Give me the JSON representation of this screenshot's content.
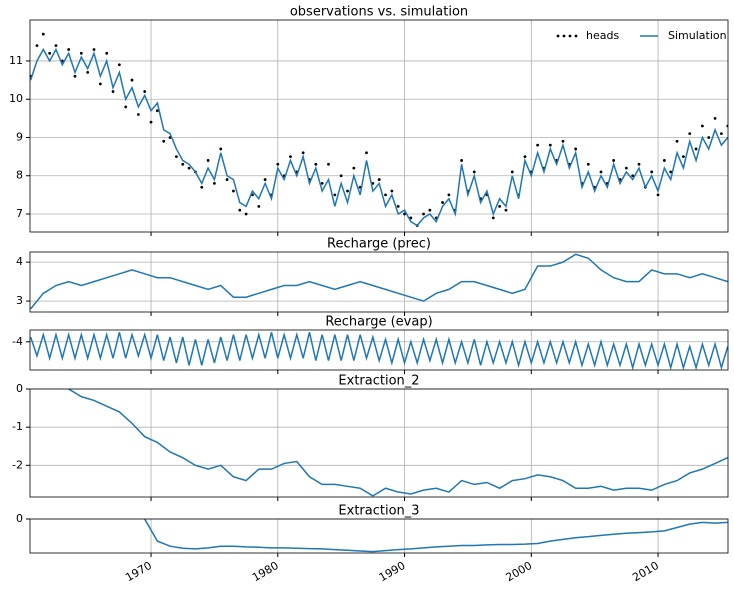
{
  "chart_data": [
    {
      "type": "line",
      "title": "observations vs. simulation",
      "x": [
        1960.5,
        1961,
        1961.5,
        1962,
        1962.5,
        1963,
        1963.5,
        1964,
        1964.5,
        1965,
        1965.5,
        1966,
        1966.5,
        1967,
        1967.5,
        1968,
        1968.5,
        1969,
        1969.5,
        1970,
        1970.5,
        1971,
        1971.5,
        1972,
        1972.5,
        1973,
        1973.5,
        1974,
        1974.5,
        1975,
        1975.5,
        1976,
        1976.5,
        1977,
        1977.5,
        1978,
        1978.5,
        1979,
        1979.5,
        1980,
        1980.5,
        1981,
        1981.5,
        1982,
        1982.5,
        1983,
        1983.5,
        1984,
        1984.5,
        1985,
        1985.5,
        1986,
        1986.5,
        1987,
        1987.5,
        1988,
        1988.5,
        1989,
        1989.5,
        1990,
        1990.5,
        1991,
        1991.5,
        1992,
        1992.5,
        1993,
        1993.5,
        1994,
        1994.5,
        1995,
        1995.5,
        1996,
        1996.5,
        1997,
        1997.5,
        1998,
        1998.5,
        1999,
        1999.5,
        2000,
        2000.5,
        2001,
        2001.5,
        2002,
        2002.5,
        2003,
        2003.5,
        2004,
        2004.5,
        2005,
        2005.5,
        2006,
        2006.5,
        2007,
        2007.5,
        2008,
        2008.5,
        2009,
        2009.5,
        2010,
        2010.5,
        2011,
        2011.5,
        2012,
        2012.5,
        2013,
        2013.5,
        2014,
        2014.5,
        2015,
        2015.5
      ],
      "series": [
        {
          "name": "heads",
          "mode": "markers",
          "color": "#000000",
          "values": [
            10.6,
            11.4,
            11.7,
            11.2,
            11.4,
            11.0,
            11.3,
            10.6,
            11.2,
            10.7,
            11.3,
            10.4,
            11.2,
            10.2,
            10.9,
            9.8,
            10.5,
            9.6,
            10.2,
            9.4,
            9.7,
            8.9,
            9.0,
            8.5,
            8.3,
            8.2,
            8.1,
            7.7,
            8.4,
            7.8,
            8.7,
            7.9,
            7.6,
            7.1,
            7.0,
            7.5,
            7.2,
            7.9,
            7.5,
            8.3,
            8.0,
            8.5,
            8.1,
            8.6,
            7.9,
            8.3,
            7.8,
            8.3,
            7.5,
            8.0,
            7.6,
            8.2,
            7.7,
            8.6,
            7.8,
            7.9,
            7.5,
            7.6,
            7.2,
            7.0,
            6.9,
            6.7,
            7.0,
            7.1,
            6.9,
            7.3,
            7.5,
            7.1,
            8.4,
            7.6,
            8.1,
            7.4,
            7.5,
            6.9,
            7.2,
            7.1,
            8.1,
            7.5,
            8.5,
            8.1,
            8.8,
            8.2,
            8.8,
            8.4,
            8.9,
            8.3,
            8.7,
            7.8,
            8.3,
            7.7,
            8.1,
            7.8,
            8.4,
            7.9,
            8.2,
            8.0,
            8.3,
            7.7,
            8.1,
            7.5,
            8.4,
            8.1,
            8.9,
            8.5,
            9.1,
            8.7,
            9.3,
            9.0,
            9.5,
            9.1,
            9.3
          ]
        },
        {
          "name": "Simulation",
          "mode": "line",
          "color": "#1f77b4",
          "values": [
            10.5,
            11.0,
            11.3,
            11.0,
            11.3,
            10.9,
            11.2,
            10.7,
            11.1,
            10.8,
            11.2,
            10.6,
            11.0,
            10.3,
            10.7,
            10.0,
            10.3,
            9.8,
            10.1,
            9.7,
            9.9,
            9.2,
            9.1,
            8.7,
            8.4,
            8.3,
            8.1,
            7.8,
            8.2,
            7.9,
            8.6,
            8.0,
            7.9,
            7.3,
            7.2,
            7.6,
            7.4,
            7.8,
            7.4,
            8.2,
            7.9,
            8.4,
            8.0,
            8.5,
            7.8,
            8.2,
            7.6,
            7.9,
            7.2,
            7.8,
            7.3,
            8.0,
            7.5,
            8.4,
            7.6,
            7.8,
            7.2,
            7.5,
            7.0,
            7.1,
            6.8,
            6.7,
            6.9,
            7.0,
            6.8,
            7.2,
            7.4,
            7.0,
            8.3,
            7.5,
            8.0,
            7.3,
            7.6,
            7.0,
            7.4,
            7.2,
            8.0,
            7.4,
            8.4,
            8.0,
            8.6,
            8.1,
            8.7,
            8.3,
            8.8,
            8.2,
            8.6,
            7.7,
            8.1,
            7.6,
            8.0,
            7.7,
            8.3,
            7.8,
            8.1,
            7.9,
            8.2,
            7.7,
            8.0,
            7.6,
            8.2,
            7.9,
            8.6,
            8.2,
            8.9,
            8.4,
            9.0,
            8.7,
            9.2,
            8.8,
            9.0
          ]
        }
      ],
      "xlim": [
        1960.45,
        2015.52
      ],
      "xticks": [
        1970,
        1980,
        1990,
        2000,
        2010
      ],
      "xticklabels": false,
      "ylim": [
        6.53,
        12.07
      ],
      "yticks": [
        7,
        8,
        9,
        10,
        11
      ],
      "grid": true,
      "legend": "upper right"
    },
    {
      "type": "line",
      "title": "Recharge (prec)",
      "color": "#1f77b4",
      "x": [
        1960.5,
        1961.5,
        1962.5,
        1963.5,
        1964.5,
        1965.5,
        1966.5,
        1967.5,
        1968.5,
        1969.5,
        1970.5,
        1971.5,
        1972.5,
        1973.5,
        1974.5,
        1975.5,
        1976.5,
        1977.5,
        1978.5,
        1979.5,
        1980.5,
        1981.5,
        1982.5,
        1983.5,
        1984.5,
        1985.5,
        1986.5,
        1987.5,
        1988.5,
        1989.5,
        1990.5,
        1991.5,
        1992.5,
        1993.5,
        1994.5,
        1995.5,
        1996.5,
        1997.5,
        1998.5,
        1999.5,
        2000.5,
        2001.5,
        2002.5,
        2003.5,
        2004.5,
        2005.5,
        2006.5,
        2007.5,
        2008.5,
        2009.5,
        2010.5,
        2011.5,
        2012.5,
        2013.5,
        2014.5,
        2015.5
      ],
      "values": [
        2.8,
        3.2,
        3.4,
        3.5,
        3.4,
        3.5,
        3.6,
        3.7,
        3.8,
        3.7,
        3.6,
        3.6,
        3.5,
        3.4,
        3.3,
        3.4,
        3.1,
        3.1,
        3.2,
        3.3,
        3.4,
        3.4,
        3.5,
        3.4,
        3.3,
        3.4,
        3.5,
        3.4,
        3.3,
        3.2,
        3.1,
        3.0,
        3.2,
        3.3,
        3.5,
        3.5,
        3.4,
        3.3,
        3.2,
        3.3,
        3.9,
        3.9,
        4.0,
        4.2,
        4.1,
        3.8,
        3.6,
        3.5,
        3.5,
        3.8,
        3.7,
        3.7,
        3.6,
        3.7,
        3.6,
        3.5
      ],
      "xlim": [
        1960.45,
        2015.52
      ],
      "xticks": [
        1970,
        1980,
        1990,
        2000,
        2010
      ],
      "xticklabels": false,
      "ylim": [
        2.72,
        4.26
      ],
      "yticks": [
        3,
        4
      ],
      "grid": true
    },
    {
      "type": "line",
      "title": "Recharge (evap)",
      "color": "#1f77b4",
      "x": [
        1960.5,
        1961,
        1961.5,
        1962,
        1962.5,
        1963,
        1963.5,
        1964,
        1964.5,
        1965,
        1965.5,
        1966,
        1966.5,
        1967,
        1967.5,
        1968,
        1968.5,
        1969,
        1969.5,
        1970,
        1970.5,
        1971,
        1971.5,
        1972,
        1972.5,
        1973,
        1973.5,
        1974,
        1974.5,
        1975,
        1975.5,
        1976,
        1976.5,
        1977,
        1977.5,
        1978,
        1978.5,
        1979,
        1979.5,
        1980,
        1980.5,
        1981,
        1981.5,
        1982,
        1982.5,
        1983,
        1983.5,
        1984,
        1984.5,
        1985,
        1985.5,
        1986,
        1986.5,
        1987,
        1987.5,
        1988,
        1988.5,
        1989,
        1989.5,
        1990,
        1990.5,
        1991,
        1991.5,
        1992,
        1992.5,
        1993,
        1993.5,
        1994,
        1994.5,
        1995,
        1995.5,
        1996,
        1996.5,
        1997,
        1997.5,
        1998,
        1998.5,
        1999,
        1999.5,
        2000,
        2000.5,
        2001,
        2001.5,
        2002,
        2002.5,
        2003,
        2003.5,
        2004,
        2004.5,
        2005,
        2005.5,
        2006,
        2006.5,
        2007,
        2007.5,
        2008,
        2008.5,
        2009,
        2009.5,
        2010,
        2010.5,
        2011,
        2011.5,
        2012,
        2012.5,
        2013,
        2013.5,
        2014,
        2014.5,
        2015,
        2015.5
      ],
      "values": [
        -3.9,
        -4.3,
        -3.85,
        -4.35,
        -3.85,
        -4.35,
        -3.85,
        -4.35,
        -3.85,
        -4.35,
        -3.85,
        -4.35,
        -3.85,
        -4.35,
        -3.8,
        -4.35,
        -3.85,
        -4.3,
        -3.85,
        -4.35,
        -3.85,
        -4.4,
        -3.9,
        -4.45,
        -3.9,
        -4.5,
        -3.95,
        -4.5,
        -3.95,
        -4.45,
        -3.9,
        -4.4,
        -3.85,
        -4.4,
        -3.85,
        -4.35,
        -3.85,
        -4.35,
        -3.8,
        -4.35,
        -3.85,
        -4.35,
        -3.85,
        -4.35,
        -3.8,
        -4.4,
        -3.85,
        -4.4,
        -3.85,
        -4.4,
        -3.85,
        -4.4,
        -3.85,
        -4.35,
        -3.9,
        -4.4,
        -3.95,
        -4.45,
        -3.95,
        -4.45,
        -4.0,
        -4.45,
        -3.95,
        -4.4,
        -3.95,
        -4.45,
        -3.95,
        -4.45,
        -4.0,
        -4.45,
        -3.95,
        -4.5,
        -4.0,
        -4.45,
        -4.0,
        -4.45,
        -4.0,
        -4.5,
        -4.0,
        -4.45,
        -4.0,
        -4.45,
        -4.0,
        -4.45,
        -4.0,
        -4.45,
        -4.0,
        -4.5,
        -4.05,
        -4.5,
        -4.0,
        -4.5,
        -4.05,
        -4.5,
        -4.05,
        -4.55,
        -4.05,
        -4.5,
        -4.05,
        -4.5,
        -4.05,
        -4.55,
        -4.05,
        -4.55,
        -4.1,
        -4.55,
        -4.05,
        -4.5,
        -4.05,
        -4.55,
        -4.1
      ],
      "xlim": [
        1960.45,
        2015.52
      ],
      "xticks": [
        1970,
        1980,
        1990,
        2000,
        2010
      ],
      "xticklabels": false,
      "ylim": [
        -4.6,
        -3.75
      ],
      "yticks": [
        -4
      ],
      "grid": true
    },
    {
      "type": "line",
      "title": "Extraction_2",
      "color": "#1f77b4",
      "x": [
        1960.5,
        1961.5,
        1962.5,
        1963.5,
        1964.5,
        1965.5,
        1966.5,
        1967.5,
        1968.5,
        1969.5,
        1970.5,
        1971.5,
        1972.5,
        1973.5,
        1974.5,
        1975.5,
        1976.5,
        1977.5,
        1978.5,
        1979.5,
        1980.5,
        1981.5,
        1982.5,
        1983.5,
        1984.5,
        1985.5,
        1986.5,
        1987.5,
        1988.5,
        1989.5,
        1990.5,
        1991.5,
        1992.5,
        1993.5,
        1994.5,
        1995.5,
        1996.5,
        1997.5,
        1998.5,
        1999.5,
        2000.5,
        2001.5,
        2002.5,
        2003.5,
        2004.5,
        2005.5,
        2006.5,
        2007.5,
        2008.5,
        2009.5,
        2010.5,
        2011.5,
        2012.5,
        2013.5,
        2014.5,
        2015.5
      ],
      "values": [
        null,
        null,
        null,
        0,
        -0.2,
        -0.3,
        -0.45,
        -0.6,
        -0.9,
        -1.25,
        -1.4,
        -1.65,
        -1.8,
        -2.0,
        -2.1,
        -2.0,
        -2.3,
        -2.4,
        -2.1,
        -2.1,
        -1.95,
        -1.9,
        -2.3,
        -2.5,
        -2.5,
        -2.55,
        -2.6,
        -2.8,
        -2.6,
        -2.7,
        -2.75,
        -2.65,
        -2.6,
        -2.7,
        -2.4,
        -2.5,
        -2.45,
        -2.6,
        -2.4,
        -2.35,
        -2.25,
        -2.3,
        -2.4,
        -2.6,
        -2.6,
        -2.55,
        -2.65,
        -2.6,
        -2.6,
        -2.65,
        -2.5,
        -2.4,
        -2.2,
        -2.1,
        -1.95,
        -1.8
      ],
      "xlim": [
        1960.45,
        2015.52
      ],
      "xticks": [
        1970,
        1980,
        1990,
        2000,
        2010
      ],
      "xticklabels": false,
      "ylim": [
        -2.83,
        0
      ],
      "yticks": [
        0,
        -1,
        -2
      ],
      "grid": true
    },
    {
      "type": "line",
      "title": "Extraction_3",
      "color": "#1f77b4",
      "x": [
        1960.5,
        1961.5,
        1962.5,
        1963.5,
        1964.5,
        1965.5,
        1966.5,
        1967.5,
        1968.5,
        1969.5,
        1970.5,
        1971.5,
        1972.5,
        1973.5,
        1974.5,
        1975.5,
        1976.5,
        1977.5,
        1978.5,
        1979.5,
        1980.5,
        1981.5,
        1982.5,
        1983.5,
        1984.5,
        1985.5,
        1986.5,
        1987.5,
        1988.5,
        1989.5,
        1990.5,
        1991.5,
        1992.5,
        1993.5,
        1994.5,
        1995.5,
        1996.5,
        1997.5,
        1998.5,
        1999.5,
        2000.5,
        2001.5,
        2002.5,
        2003.5,
        2004.5,
        2005.5,
        2006.5,
        2007.5,
        2008.5,
        2009.5,
        2010.5,
        2011.5,
        2012.5,
        2013.5,
        2014.5,
        2015.5
      ],
      "values": [
        null,
        null,
        null,
        null,
        null,
        null,
        null,
        null,
        null,
        0,
        -0.65,
        -0.8,
        -0.86,
        -0.88,
        -0.85,
        -0.8,
        -0.8,
        -0.82,
        -0.83,
        -0.85,
        -0.85,
        -0.86,
        -0.87,
        -0.88,
        -0.9,
        -0.92,
        -0.94,
        -0.96,
        -0.93,
        -0.9,
        -0.88,
        -0.85,
        -0.82,
        -0.8,
        -0.78,
        -0.78,
        -0.76,
        -0.75,
        -0.75,
        -0.74,
        -0.72,
        -0.65,
        -0.6,
        -0.55,
        -0.52,
        -0.48,
        -0.45,
        -0.42,
        -0.4,
        -0.38,
        -0.35,
        -0.25,
        -0.15,
        -0.1,
        -0.12,
        -0.1
      ],
      "xlim": [
        1960.45,
        2015.52
      ],
      "xticks": [
        1970,
        1980,
        1990,
        2000,
        2010
      ],
      "xticklabels": true,
      "ylim": [
        -1,
        0
      ],
      "yticks": [
        0
      ],
      "grid": true
    }
  ]
}
